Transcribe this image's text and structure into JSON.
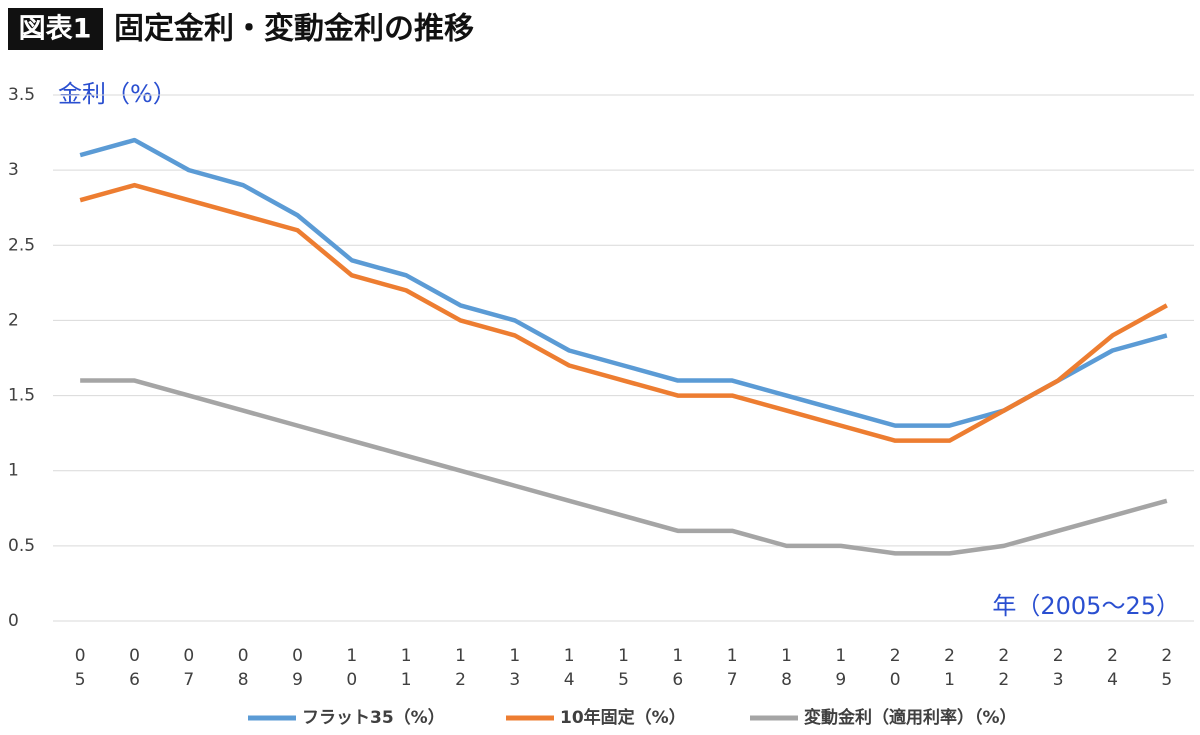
{
  "chart_data": {
    "type": "line",
    "badge": "図表1",
    "title": "固定金利・変動金利の推移",
    "y_label": "金利（%）",
    "x_label": "年（2005～25）",
    "categories": [
      "05",
      "06",
      "07",
      "08",
      "09",
      "10",
      "11",
      "12",
      "13",
      "14",
      "15",
      "16",
      "17",
      "18",
      "19",
      "20",
      "21",
      "22",
      "23",
      "24",
      "25"
    ],
    "series": [
      {
        "name": "フラット35（%）",
        "color": "#5b9bd5",
        "values": [
          3.1,
          3.2,
          3.0,
          2.9,
          2.7,
          2.4,
          2.3,
          2.1,
          2.0,
          1.8,
          1.7,
          1.6,
          1.6,
          1.5,
          1.4,
          1.3,
          1.3,
          1.4,
          1.6,
          1.8,
          1.9
        ]
      },
      {
        "name": "10年固定（%）",
        "color": "#ed7d31",
        "values": [
          2.8,
          2.9,
          2.8,
          2.7,
          2.6,
          2.3,
          2.2,
          2.0,
          1.9,
          1.7,
          1.6,
          1.5,
          1.5,
          1.4,
          1.3,
          1.2,
          1.2,
          1.4,
          1.6,
          1.9,
          2.1
        ]
      },
      {
        "name": "変動金利（適用利率）（%）",
        "color": "#a5a5a5",
        "values": [
          1.6,
          1.6,
          1.5,
          1.4,
          1.3,
          1.2,
          1.1,
          1.0,
          0.9,
          0.8,
          0.7,
          0.6,
          0.6,
          0.5,
          0.5,
          0.45,
          0.45,
          0.5,
          0.6,
          0.7,
          0.8
        ]
      }
    ],
    "ylim": [
      0,
      3.5
    ],
    "yticks": [
      0,
      0.5,
      1,
      1.5,
      2,
      2.5,
      3,
      3.5
    ],
    "grid": true,
    "legend": "bottom"
  }
}
